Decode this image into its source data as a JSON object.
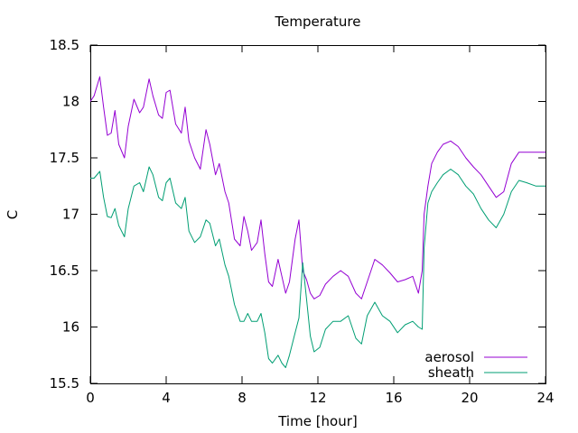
{
  "chart_data": {
    "type": "line",
    "title": "Temperature",
    "xlabel": "Time [hour]",
    "ylabel": "C",
    "xlim": [
      0,
      24
    ],
    "ylim": [
      15.5,
      18.5
    ],
    "xticks": [
      "0",
      "4",
      "8",
      "12",
      "16",
      "20",
      "24"
    ],
    "yticks": [
      "15.5",
      "16",
      "16.5",
      "17",
      "17.5",
      "18",
      "18.5"
    ],
    "grid": false,
    "legend_position": "bottom-right",
    "x": [
      0,
      0.2,
      0.5,
      0.7,
      0.9,
      1.1,
      1.3,
      1.5,
      1.8,
      2.0,
      2.3,
      2.6,
      2.8,
      3.1,
      3.3,
      3.6,
      3.8,
      4.0,
      4.2,
      4.5,
      4.8,
      5.0,
      5.2,
      5.5,
      5.8,
      6.1,
      6.3,
      6.6,
      6.8,
      7.1,
      7.3,
      7.6,
      7.9,
      8.1,
      8.3,
      8.5,
      8.8,
      9.0,
      9.2,
      9.4,
      9.6,
      9.9,
      10.1,
      10.3,
      10.5,
      10.8,
      11.0,
      11.2,
      11.4,
      11.6,
      11.8,
      12.1,
      12.4,
      12.8,
      13.2,
      13.6,
      14.0,
      14.3,
      14.6,
      15.0,
      15.4,
      15.8,
      16.2,
      16.6,
      17.0,
      17.3,
      17.5,
      17.6,
      17.8,
      18.0,
      18.3,
      18.6,
      19.0,
      19.4,
      19.8,
      20.2,
      20.6,
      21.0,
      21.4,
      21.8,
      22.2,
      22.6,
      23.0,
      23.5,
      24.0
    ],
    "series": [
      {
        "name": "aerosol",
        "color": "#9400d3",
        "values": [
          18.0,
          18.05,
          18.22,
          17.95,
          17.7,
          17.72,
          17.92,
          17.62,
          17.5,
          17.78,
          18.02,
          17.9,
          17.95,
          18.2,
          18.05,
          17.88,
          17.85,
          18.08,
          18.1,
          17.8,
          17.72,
          17.95,
          17.65,
          17.5,
          17.4,
          17.75,
          17.62,
          17.35,
          17.45,
          17.2,
          17.1,
          16.78,
          16.72,
          16.98,
          16.85,
          16.68,
          16.75,
          16.95,
          16.65,
          16.4,
          16.36,
          16.6,
          16.45,
          16.3,
          16.4,
          16.78,
          16.95,
          16.5,
          16.42,
          16.3,
          16.25,
          16.28,
          16.38,
          16.45,
          16.5,
          16.45,
          16.3,
          16.25,
          16.4,
          16.6,
          16.55,
          16.48,
          16.4,
          16.42,
          16.45,
          16.3,
          16.5,
          17.0,
          17.25,
          17.45,
          17.55,
          17.62,
          17.65,
          17.6,
          17.5,
          17.42,
          17.35,
          17.25,
          17.15,
          17.2,
          17.45,
          17.55,
          17.55,
          17.55,
          17.55
        ]
      },
      {
        "name": "sheath",
        "color": "#009e73",
        "values": [
          17.32,
          17.32,
          17.38,
          17.15,
          16.98,
          16.97,
          17.05,
          16.9,
          16.8,
          17.05,
          17.25,
          17.28,
          17.2,
          17.42,
          17.35,
          17.15,
          17.12,
          17.28,
          17.32,
          17.1,
          17.05,
          17.15,
          16.85,
          16.75,
          16.8,
          16.95,
          16.92,
          16.72,
          16.78,
          16.55,
          16.45,
          16.2,
          16.05,
          16.05,
          16.12,
          16.05,
          16.05,
          16.12,
          15.95,
          15.72,
          15.68,
          15.75,
          15.68,
          15.64,
          15.75,
          15.95,
          16.08,
          16.57,
          16.25,
          15.92,
          15.78,
          15.82,
          15.98,
          16.05,
          16.05,
          16.1,
          15.9,
          15.85,
          16.1,
          16.22,
          16.1,
          16.05,
          15.95,
          16.02,
          16.05,
          16.0,
          15.98,
          16.7,
          17.1,
          17.2,
          17.28,
          17.35,
          17.4,
          17.35,
          17.25,
          17.18,
          17.05,
          16.95,
          16.88,
          17.0,
          17.2,
          17.3,
          17.28,
          17.25,
          17.25
        ]
      }
    ]
  }
}
